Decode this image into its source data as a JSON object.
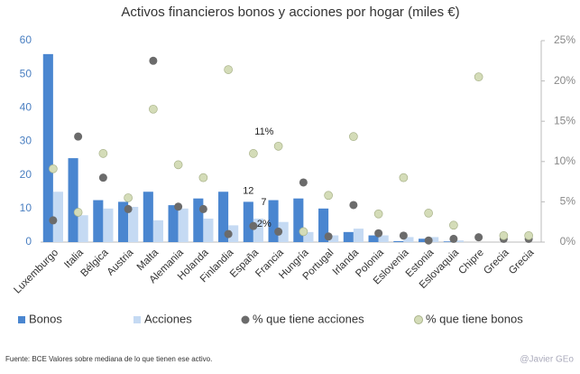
{
  "chart_data": {
    "type": "bar",
    "title": "Activos financieros bonos y acciones por hogar (miles €)",
    "categories": [
      "Luxemburgo",
      "Italia",
      "Bélgica",
      "Austria",
      "Malta",
      "Alemania",
      "Holanda",
      "Finlandia",
      "España",
      "Francia",
      "Hungría",
      "Portugal",
      "Irlanda",
      "Polonia",
      "Eslovenia",
      "Estonia",
      "Eslovaquia",
      "Chipre",
      "Grecia",
      "Grecia"
    ],
    "series": [
      {
        "name": "Bonos",
        "kind": "bar",
        "color": "#4a86d0",
        "values": [
          56,
          25,
          12.5,
          12,
          15,
          11,
          13,
          15,
          12,
          12.5,
          13,
          10,
          3,
          2,
          0.3,
          1,
          0.2,
          0,
          0,
          0
        ],
        "value_labels": [
          null,
          null,
          null,
          null,
          null,
          null,
          null,
          null,
          "12",
          null,
          null,
          null,
          null,
          null,
          null,
          null,
          null,
          null,
          null,
          null
        ]
      },
      {
        "name": "Acciones",
        "kind": "bar",
        "color": "#c5daf3",
        "values": [
          15,
          8,
          10,
          10.5,
          6.5,
          10,
          7,
          5,
          7,
          6,
          3,
          2,
          4,
          2,
          1.5,
          1.5,
          0.5,
          0,
          0,
          0
        ],
        "value_labels": [
          null,
          null,
          null,
          null,
          null,
          null,
          null,
          null,
          "7",
          null,
          null,
          null,
          null,
          null,
          null,
          null,
          null,
          null,
          null,
          null
        ]
      },
      {
        "name": "% que tiene acciones",
        "kind": "dot",
        "axis": "y2",
        "color": "#6b6b6b",
        "values": [
          2.7,
          13.1,
          8,
          4.1,
          22.5,
          4.4,
          4.1,
          1,
          2,
          1.3,
          7.4,
          0.7,
          4.6,
          1.1,
          0.8,
          0.2,
          0.4,
          0.6,
          0.4,
          0.4
        ],
        "value_labels": [
          null,
          null,
          null,
          null,
          null,
          null,
          null,
          null,
          "2%",
          null,
          null,
          null,
          null,
          null,
          null,
          null,
          null,
          null,
          null,
          null
        ]
      },
      {
        "name": "% que tiene bonos",
        "kind": "dot",
        "axis": "y2",
        "color": "#d4dcb8",
        "values": [
          9.1,
          3.7,
          11,
          5.5,
          16.5,
          9.6,
          8,
          21.4,
          11,
          11.9,
          1.3,
          5.8,
          13.1,
          3.5,
          8,
          3.6,
          2.1,
          20.5,
          0.8,
          0.8
        ],
        "value_labels": [
          null,
          null,
          null,
          null,
          null,
          null,
          null,
          null,
          "11%",
          null,
          null,
          null,
          null,
          null,
          null,
          null,
          null,
          null,
          null,
          null
        ]
      }
    ],
    "ylim": [
      0,
      60
    ],
    "yticks": [
      0,
      10,
      20,
      30,
      40,
      50,
      60
    ],
    "y2lim": [
      0,
      25
    ],
    "y2ticks": [
      {
        "value": 0,
        "label": "0%"
      },
      {
        "value": 5,
        "label": "5%"
      },
      {
        "value": 10,
        "label": "10%"
      },
      {
        "value": 15,
        "label": "15%"
      },
      {
        "value": 20,
        "label": "20%"
      },
      {
        "value": 25,
        "label": "25%"
      }
    ],
    "legend": "bottom",
    "source": "Fuente: BCE Valores sobre mediana  de lo que tienen ese activo.",
    "credit": "@Javier GEo"
  }
}
